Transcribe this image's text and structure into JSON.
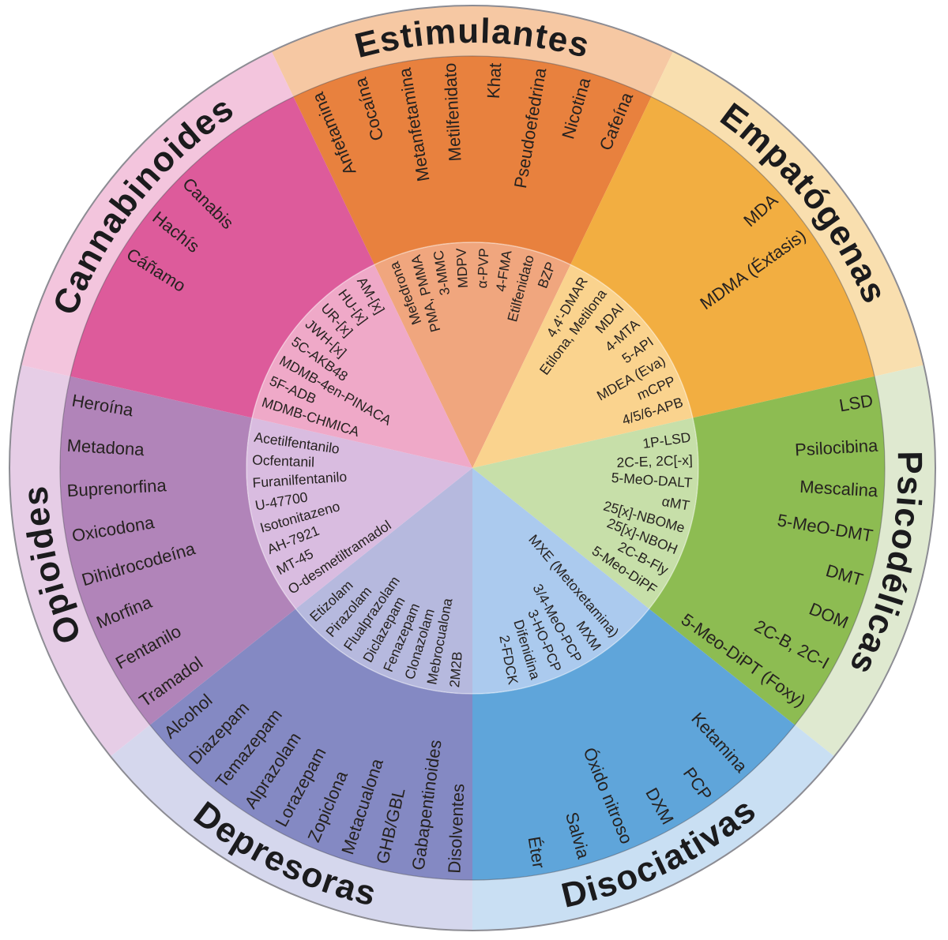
{
  "background": "#ffffff",
  "outline_color": "#8c8c93",
  "ring_divider_color": "rgba(70,70,80,0.45)",
  "inner_divider_color": "rgba(255,255,255,0.45)",
  "text_color": "#262220",
  "category_text_color": "#1b1b1d",
  "chart_data": {
    "type": "radial-classification-wheel",
    "rings": [
      "categoria",
      "sustancias-comunes",
      "sustancias-nuevas"
    ],
    "sectors": [
      {
        "id": "estimulantes",
        "label": "Estimulantes",
        "colors": {
          "outer": "#F6C8A3",
          "middle": "#E8813E",
          "inner": "#F0A67E"
        },
        "middle_ring": [
          "Anfetamina",
          "Cocaína",
          "Metanfetamina",
          "Metilfenidato",
          "Khat",
          "Pseudoefedrina",
          "Nicotina",
          "Cafeína"
        ],
        "inner_ring": [
          "Mefedrona",
          "PMA, PMMA",
          "3-MMC",
          "MDPV",
          "α-PVP",
          "4-FMA",
          "Etilfenidato",
          "BZP"
        ]
      },
      {
        "id": "empatogenas",
        "label": "Empatógenas",
        "colors": {
          "outer": "#F9DFAF",
          "middle": "#F2AE41",
          "inner": "#FAD38E"
        },
        "middle_ring": [
          "MDA",
          "MDMA (Éxtasis)"
        ],
        "inner_ring": [
          "4,4'-DMAR",
          "Etilona, Metilona",
          "MDAI",
          "4-MTA",
          "5-API",
          "MDEA (Eva)",
          "mCPP",
          "4/5/6-APB"
        ]
      },
      {
        "id": "psicodelicas",
        "label": "Psicodélicas",
        "colors": {
          "outer": "#DFE9D0",
          "middle": "#8DBC52",
          "inner": "#C7DFA9"
        },
        "middle_ring": [
          "LSD",
          "Psilocibina",
          "Mescalina",
          "5-MeO-DMT",
          "DMT",
          "DOM",
          "2C-B, 2C-I",
          "5-Meo-DiPT (Foxy)"
        ],
        "inner_ring": [
          "1P-LSD",
          "2C-E, 2C[-x]",
          "5-MeO-DALT",
          "αMT",
          "25[x]-NBOMe",
          "25[x]-NBOH",
          "2C-B-Fly",
          "5-Meo-DiPF"
        ]
      },
      {
        "id": "disociativas",
        "label": "Disociativas",
        "colors": {
          "outer": "#C9DFF3",
          "middle": "#5FA5DA",
          "inner": "#ABCAEE"
        },
        "middle_ring": [
          "Ketamina",
          "PCP",
          "DXM",
          "Óxido nitroso",
          "Salvia",
          "Éter"
        ],
        "inner_ring": [
          "MXE (Metoxetamina)",
          "MXM",
          "3/4-MeO-PCP",
          "3-HO-PCP",
          "Difenidina",
          "2-FDCK"
        ]
      },
      {
        "id": "depresoras",
        "label": "Depresoras",
        "colors": {
          "outer": "#D5D7ED",
          "middle": "#8489C3",
          "inner": "#B6B9DE"
        },
        "middle_ring": [
          "Alcohol",
          "Diazepam",
          "Temazepam",
          "Alprazolam",
          "Lorazepam",
          "Zopiclona",
          "Metacualona",
          "GHB/GBL",
          "Gabapentinoides",
          "Disolventes"
        ],
        "inner_ring": [
          "Etizolam",
          "Pirazolam",
          "Flualprazolam",
          "Diclazepam",
          "Fenazepam",
          "Clonazolam",
          "Mebrocualona",
          "2M2B"
        ]
      },
      {
        "id": "opioides",
        "label": "Opioides",
        "colors": {
          "outer": "#E6CDE6",
          "middle": "#B184B9",
          "inner": "#D9BCE0"
        },
        "middle_ring": [
          "Heroína",
          "Metadona",
          "Buprenorfina",
          "Oxicodona",
          "Dihidrocodeína",
          "Morfina",
          "Fentanilo",
          "Tramadol"
        ],
        "inner_ring": [
          "Acetilfentanilo",
          "Ocfentanil",
          "Furanilfentanilo",
          "U-47700",
          "Isotonitazeno",
          "AH-7921",
          "MT-45",
          "O-desmetiltramadol"
        ]
      },
      {
        "id": "cannabinoides",
        "label": "Cannabinoides",
        "colors": {
          "outer": "#F3C5DD",
          "middle": "#DD5B9B",
          "inner": "#EFA9C8"
        },
        "middle_ring": [
          "Canabis",
          "Hachís",
          "Cáñamo"
        ],
        "inner_ring": [
          "AM-[x]",
          "HU-[x]",
          "UR-[x]",
          "JWH-[x]",
          "5C-AKB48",
          "MDMB-4en-PINACA",
          "5F-ADB",
          "MDMB-CHMICA"
        ]
      }
    ]
  }
}
